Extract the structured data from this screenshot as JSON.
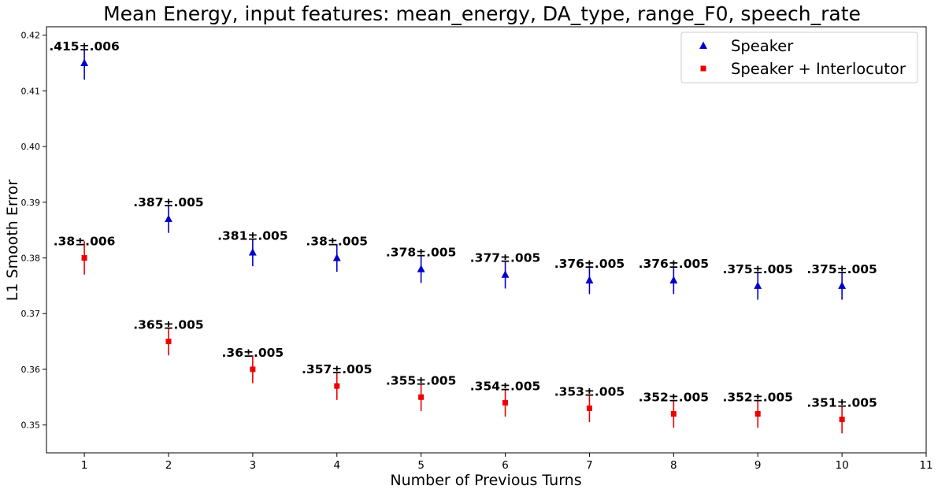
{
  "chart_data": {
    "type": "scatter",
    "title": "Mean Energy, input features: mean_energy, DA_type, range_F0, speech_rate",
    "xlabel": "Number of Previous Turns",
    "ylabel": "L1 Smooth Error",
    "xlim": [
      0.55,
      11
    ],
    "ylim": [
      0.345,
      0.4215
    ],
    "xticks": [
      "1",
      "2",
      "3",
      "4",
      "5",
      "6",
      "7",
      "8",
      "9",
      "10",
      "11"
    ],
    "yticks": [
      "0.35",
      "0.36",
      "0.37",
      "0.38",
      "0.39",
      "0.40",
      "0.41",
      "0.42"
    ],
    "grid": false,
    "legend_position": "top-right",
    "series": [
      {
        "name": "Speaker",
        "marker": "triangle",
        "color": "#0000cc",
        "x": [
          1,
          2,
          3,
          4,
          5,
          6,
          7,
          8,
          9,
          10
        ],
        "y": [
          0.415,
          0.387,
          0.381,
          0.38,
          0.378,
          0.377,
          0.376,
          0.376,
          0.375,
          0.375
        ],
        "yerr": [
          0.003,
          0.0025,
          0.0025,
          0.0025,
          0.0025,
          0.0025,
          0.0025,
          0.0025,
          0.0025,
          0.0025
        ],
        "labels": [
          ".415±.006",
          ".387±.005",
          ".381±.005",
          ".38±.005",
          ".378±.005",
          ".377±.005",
          ".376±.005",
          ".376±.005",
          ".375±.005",
          ".375±.005"
        ]
      },
      {
        "name": "Speaker + Interlocutor",
        "marker": "square",
        "color": "#ee0000",
        "x": [
          1,
          2,
          3,
          4,
          5,
          6,
          7,
          8,
          9,
          10
        ],
        "y": [
          0.38,
          0.365,
          0.36,
          0.357,
          0.355,
          0.354,
          0.353,
          0.352,
          0.352,
          0.351
        ],
        "yerr": [
          0.003,
          0.0025,
          0.0025,
          0.0025,
          0.0025,
          0.0025,
          0.0025,
          0.0025,
          0.0025,
          0.0025
        ],
        "labels": [
          ".38±.006",
          ".365±.005",
          ".36±.005",
          ".357±.005",
          ".355±.005",
          ".354±.005",
          ".353±.005",
          ".352±.005",
          ".352±.005",
          ".351±.005"
        ]
      }
    ]
  }
}
